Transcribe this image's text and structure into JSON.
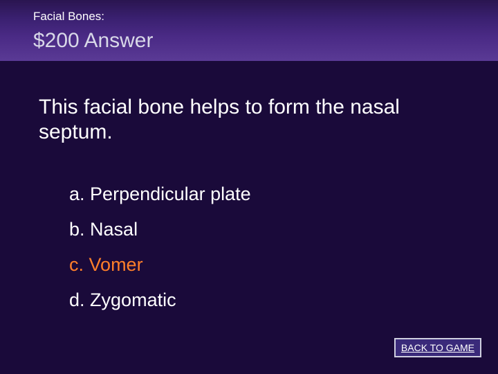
{
  "header": {
    "category": "Facial Bones:",
    "price": "$200",
    "label": "Answer"
  },
  "question": "This facial bone helps to form the nasal septum.",
  "choices": [
    {
      "letter": "a.",
      "text": "Perpendicular plate",
      "correct": false
    },
    {
      "letter": "b.",
      "text": "Nasal",
      "correct": false
    },
    {
      "letter": "c.",
      "text": "Vomer",
      "correct": true
    },
    {
      "letter": "d.",
      "text": "Zygomatic",
      "correct": false
    }
  ],
  "back_button": "BACK TO GAME",
  "colors": {
    "background": "#1a0a3a",
    "header_gradient_top": "#2a1550",
    "header_gradient_bottom": "#5a3a95",
    "text": "#ffffff",
    "price_text": "#d8d8e8",
    "correct_answer": "#ff7f2a",
    "button_bg": "#3a2a7a",
    "button_border": "#d0d0e0"
  },
  "fonts": {
    "category_size": 17,
    "price_size": 30,
    "question_size": 30,
    "choice_size": 27,
    "button_size": 14
  }
}
